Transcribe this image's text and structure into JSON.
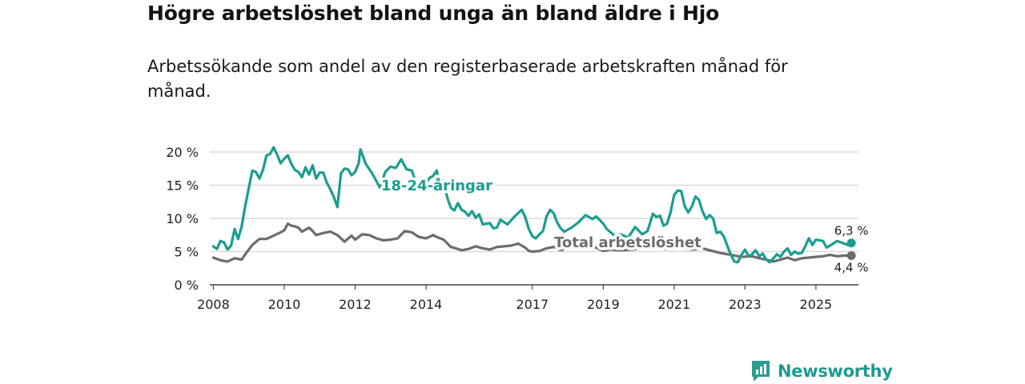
{
  "header": {
    "title": "Högre arbetslöshet bland unga än bland äldre i Hjo",
    "subtitle": "Arbetssökande som andel av den registerbaserade arbetskraften månad för månad."
  },
  "brand": {
    "name": "Newsworthy",
    "icon": "newsworthy-logo-icon",
    "color": "#2a9d8f"
  },
  "chart_data": {
    "type": "line",
    "title": "Högre arbetslöshet bland unga än bland äldre i Hjo",
    "subtitle": "Arbetssökande som andel av den registerbaserade arbetskraften månad för månad.",
    "xlabel": "",
    "ylabel": "",
    "xlim": [
      2007.9,
      2026.2
    ],
    "ylim": [
      0,
      20
    ],
    "grid": true,
    "x_ticks": [
      2008,
      2010,
      2012,
      2014,
      2017,
      2019,
      2021,
      2023,
      2025
    ],
    "x_tick_labels": [
      "2008",
      "2010",
      "2012",
      "2014",
      "2017",
      "2019",
      "2021",
      "2023",
      "2025"
    ],
    "y_ticks": [
      0,
      5,
      10,
      15,
      20
    ],
    "y_tick_labels": [
      "0 %",
      "5 %",
      "10 %",
      "15 %",
      "20 %"
    ],
    "series": [
      {
        "name": "18-24-åringar",
        "label": "18-24-åringar",
        "color": "#1a9e90",
        "end_label": "6,3 %",
        "points": [
          [
            2008.0,
            5.8
          ],
          [
            2008.1,
            5.4
          ],
          [
            2008.2,
            6.6
          ],
          [
            2008.3,
            6.4
          ],
          [
            2008.4,
            5.3
          ],
          [
            2008.5,
            5.9
          ],
          [
            2008.6,
            8.4
          ],
          [
            2008.7,
            6.9
          ],
          [
            2008.8,
            8.8
          ],
          [
            2008.9,
            11.9
          ],
          [
            2009.0,
            14.6
          ],
          [
            2009.1,
            17.2
          ],
          [
            2009.2,
            17.0
          ],
          [
            2009.3,
            16.0
          ],
          [
            2009.4,
            17.3
          ],
          [
            2009.5,
            19.5
          ],
          [
            2009.6,
            19.7
          ],
          [
            2009.7,
            20.7
          ],
          [
            2009.8,
            19.6
          ],
          [
            2009.9,
            18.3
          ],
          [
            2010.0,
            19.0
          ],
          [
            2010.1,
            19.5
          ],
          [
            2010.2,
            18.2
          ],
          [
            2010.3,
            17.3
          ],
          [
            2010.4,
            17.0
          ],
          [
            2010.5,
            16.2
          ],
          [
            2010.6,
            17.7
          ],
          [
            2010.7,
            16.6
          ],
          [
            2010.8,
            18.0
          ],
          [
            2010.9,
            16.0
          ],
          [
            2011.0,
            16.9
          ],
          [
            2011.1,
            16.9
          ],
          [
            2011.2,
            15.4
          ],
          [
            2011.3,
            14.4
          ],
          [
            2011.4,
            13.2
          ],
          [
            2011.5,
            11.7
          ],
          [
            2011.6,
            16.8
          ],
          [
            2011.7,
            17.5
          ],
          [
            2011.8,
            17.4
          ],
          [
            2011.9,
            16.5
          ],
          [
            2012.0,
            17.0
          ],
          [
            2012.1,
            18.3
          ],
          [
            2012.15,
            20.4
          ],
          [
            2012.3,
            18.2
          ],
          [
            2012.5,
            16.6
          ],
          [
            2012.7,
            14.6
          ],
          [
            2012.85,
            17.0
          ],
          [
            2013.0,
            17.8
          ],
          [
            2013.15,
            17.6
          ],
          [
            2013.3,
            18.9
          ],
          [
            2013.45,
            17.4
          ],
          [
            2013.6,
            17.2
          ],
          [
            2013.75,
            14.8
          ],
          [
            2013.95,
            14.9
          ],
          [
            2014.1,
            16.1
          ],
          [
            2014.2,
            16.4
          ],
          [
            2014.3,
            17.2
          ],
          [
            2014.4,
            15.0
          ],
          [
            2014.5,
            15.7
          ],
          [
            2014.6,
            13.1
          ],
          [
            2014.7,
            11.6
          ],
          [
            2014.8,
            11.2
          ],
          [
            2014.9,
            12.3
          ],
          [
            2015.0,
            11.3
          ],
          [
            2015.1,
            11.0
          ],
          [
            2015.2,
            10.4
          ],
          [
            2015.3,
            11.1
          ],
          [
            2015.4,
            10.1
          ],
          [
            2015.5,
            10.6
          ],
          [
            2015.6,
            9.1
          ],
          [
            2015.8,
            9.3
          ],
          [
            2015.9,
            8.5
          ],
          [
            2016.0,
            8.6
          ],
          [
            2016.1,
            9.8
          ],
          [
            2016.3,
            9.1
          ],
          [
            2016.5,
            10.3
          ],
          [
            2016.7,
            11.3
          ],
          [
            2016.8,
            10.2
          ],
          [
            2016.9,
            8.4
          ],
          [
            2017.0,
            7.3
          ],
          [
            2017.1,
            7.0
          ],
          [
            2017.2,
            7.6
          ],
          [
            2017.3,
            8.1
          ],
          [
            2017.4,
            10.3
          ],
          [
            2017.5,
            11.3
          ],
          [
            2017.6,
            10.8
          ],
          [
            2017.7,
            9.4
          ],
          [
            2017.8,
            8.5
          ],
          [
            2017.9,
            8.0
          ],
          [
            2018.1,
            8.6
          ],
          [
            2018.3,
            9.4
          ],
          [
            2018.5,
            10.5
          ],
          [
            2018.7,
            9.9
          ],
          [
            2018.8,
            10.3
          ],
          [
            2019.0,
            9.2
          ],
          [
            2019.1,
            8.4
          ],
          [
            2019.3,
            7.5
          ],
          [
            2019.5,
            7.6
          ],
          [
            2019.7,
            7.1
          ],
          [
            2019.9,
            8.7
          ],
          [
            2020.1,
            7.6
          ],
          [
            2020.25,
            8.1
          ],
          [
            2020.4,
            10.7
          ],
          [
            2020.5,
            10.2
          ],
          [
            2020.6,
            10.4
          ],
          [
            2020.7,
            8.9
          ],
          [
            2020.8,
            9.2
          ],
          [
            2020.9,
            10.9
          ],
          [
            2021.0,
            13.5
          ],
          [
            2021.1,
            14.2
          ],
          [
            2021.2,
            14.1
          ],
          [
            2021.3,
            11.8
          ],
          [
            2021.4,
            10.9
          ],
          [
            2021.5,
            11.8
          ],
          [
            2021.6,
            13.3
          ],
          [
            2021.7,
            12.8
          ],
          [
            2021.8,
            11.1
          ],
          [
            2021.9,
            9.9
          ],
          [
            2022.0,
            10.5
          ],
          [
            2022.1,
            10.0
          ],
          [
            2022.2,
            7.8
          ],
          [
            2022.3,
            8.0
          ],
          [
            2022.4,
            7.3
          ],
          [
            2022.5,
            5.9
          ],
          [
            2022.6,
            4.5
          ],
          [
            2022.7,
            3.5
          ],
          [
            2022.8,
            3.4
          ],
          [
            2022.9,
            4.5
          ],
          [
            2023.0,
            5.3
          ],
          [
            2023.1,
            4.3
          ],
          [
            2023.2,
            4.6
          ],
          [
            2023.3,
            5.2
          ],
          [
            2023.4,
            4.3
          ],
          [
            2023.5,
            4.7
          ],
          [
            2023.6,
            3.8
          ],
          [
            2023.7,
            3.4
          ],
          [
            2023.8,
            4.0
          ],
          [
            2023.9,
            4.6
          ],
          [
            2024.0,
            4.2
          ],
          [
            2024.1,
            5.0
          ],
          [
            2024.2,
            5.5
          ],
          [
            2024.3,
            4.5
          ],
          [
            2024.4,
            5.0
          ],
          [
            2024.5,
            4.7
          ],
          [
            2024.6,
            4.8
          ],
          [
            2024.7,
            5.8
          ],
          [
            2024.8,
            7.0
          ],
          [
            2024.9,
            6.0
          ],
          [
            2025.0,
            6.8
          ],
          [
            2025.2,
            6.6
          ],
          [
            2025.3,
            5.6
          ],
          [
            2025.4,
            5.9
          ],
          [
            2025.6,
            6.6
          ],
          [
            2025.8,
            6.2
          ],
          [
            2025.9,
            6.0
          ],
          [
            2026.0,
            6.3
          ]
        ]
      },
      {
        "name": "Total arbetslöshet",
        "label": "Total arbetslöshet",
        "color": "#6f6a6e",
        "end_label": "4,4 %",
        "points": [
          [
            2008.0,
            4.1
          ],
          [
            2008.2,
            3.7
          ],
          [
            2008.4,
            3.5
          ],
          [
            2008.6,
            4.0
          ],
          [
            2008.8,
            3.8
          ],
          [
            2008.9,
            4.6
          ],
          [
            2009.1,
            6.0
          ],
          [
            2009.3,
            6.9
          ],
          [
            2009.5,
            6.9
          ],
          [
            2009.7,
            7.4
          ],
          [
            2009.9,
            7.9
          ],
          [
            2010.0,
            8.2
          ],
          [
            2010.1,
            9.2
          ],
          [
            2010.2,
            8.9
          ],
          [
            2010.3,
            8.8
          ],
          [
            2010.4,
            8.6
          ],
          [
            2010.5,
            8.0
          ],
          [
            2010.7,
            8.6
          ],
          [
            2010.8,
            8.1
          ],
          [
            2010.9,
            7.5
          ],
          [
            2011.1,
            7.8
          ],
          [
            2011.3,
            8.0
          ],
          [
            2011.5,
            7.5
          ],
          [
            2011.6,
            7.0
          ],
          [
            2011.7,
            6.5
          ],
          [
            2011.9,
            7.4
          ],
          [
            2012.0,
            6.8
          ],
          [
            2012.2,
            7.6
          ],
          [
            2012.4,
            7.5
          ],
          [
            2012.6,
            7.0
          ],
          [
            2012.8,
            6.7
          ],
          [
            2013.0,
            6.8
          ],
          [
            2013.2,
            7.0
          ],
          [
            2013.4,
            8.1
          ],
          [
            2013.6,
            7.9
          ],
          [
            2013.8,
            7.2
          ],
          [
            2014.0,
            7.0
          ],
          [
            2014.2,
            7.5
          ],
          [
            2014.3,
            7.2
          ],
          [
            2014.5,
            6.8
          ],
          [
            2014.7,
            5.7
          ],
          [
            2014.9,
            5.4
          ],
          [
            2015.0,
            5.2
          ],
          [
            2015.2,
            5.4
          ],
          [
            2015.4,
            5.8
          ],
          [
            2015.6,
            5.5
          ],
          [
            2015.8,
            5.3
          ],
          [
            2016.0,
            5.7
          ],
          [
            2016.2,
            5.8
          ],
          [
            2016.4,
            5.9
          ],
          [
            2016.6,
            6.2
          ],
          [
            2016.8,
            5.6
          ],
          [
            2016.9,
            5.1
          ],
          [
            2017.0,
            5.0
          ],
          [
            2017.2,
            5.1
          ],
          [
            2017.4,
            5.5
          ],
          [
            2017.6,
            5.7
          ],
          [
            2017.8,
            5.2
          ],
          [
            2018.0,
            5.6
          ],
          [
            2018.2,
            5.8
          ],
          [
            2018.5,
            5.5
          ],
          [
            2018.8,
            5.6
          ],
          [
            2019.0,
            5.1
          ],
          [
            2019.2,
            5.3
          ],
          [
            2019.5,
            5.2
          ],
          [
            2019.8,
            5.3
          ],
          [
            2020.0,
            5.5
          ],
          [
            2020.3,
            5.6
          ],
          [
            2020.6,
            5.5
          ],
          [
            2020.9,
            5.4
          ],
          [
            2021.2,
            5.6
          ],
          [
            2021.5,
            5.3
          ],
          [
            2021.8,
            5.5
          ],
          [
            2022.0,
            5.2
          ],
          [
            2022.3,
            4.8
          ],
          [
            2022.6,
            4.5
          ],
          [
            2022.9,
            4.2
          ],
          [
            2023.2,
            4.3
          ],
          [
            2023.4,
            4.0
          ],
          [
            2023.6,
            3.8
          ],
          [
            2023.8,
            3.5
          ],
          [
            2024.0,
            3.8
          ],
          [
            2024.2,
            4.1
          ],
          [
            2024.4,
            3.7
          ],
          [
            2024.6,
            4.0
          ],
          [
            2024.8,
            4.1
          ],
          [
            2025.0,
            4.2
          ],
          [
            2025.2,
            4.3
          ],
          [
            2025.4,
            4.5
          ],
          [
            2025.6,
            4.3
          ],
          [
            2025.8,
            4.4
          ],
          [
            2026.0,
            4.4
          ]
        ]
      }
    ]
  }
}
